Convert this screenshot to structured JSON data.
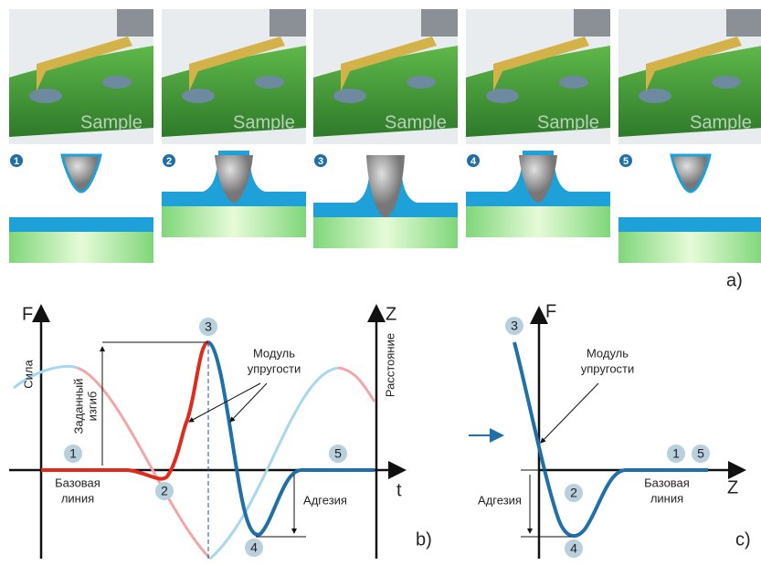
{
  "panel_a": {
    "label": "a)",
    "frames": [
      {
        "step": "1",
        "sample": "Sample"
      },
      {
        "step": "2",
        "sample": "Sample"
      },
      {
        "step": "3",
        "sample": "Sample"
      },
      {
        "step": "4",
        "sample": "Sample"
      },
      {
        "step": "5",
        "sample": "Sample"
      }
    ]
  },
  "panel_b": {
    "label": "b)",
    "f_axis": "F",
    "f_title": "Сила",
    "z_axis": "Z",
    "z_title": "Расстояние",
    "t_axis": "t",
    "setpoint": [
      "Заданный",
      "изгиб"
    ],
    "modulus": [
      "Модуль",
      "упругости"
    ],
    "baseline": [
      "Базовая",
      "линия"
    ],
    "adhesion": "Адгезия",
    "points": [
      "1",
      "2",
      "3",
      "4",
      "5"
    ]
  },
  "panel_c": {
    "label": "c)",
    "f_axis": "F",
    "z_axis": "Z",
    "modulus": [
      "Модуль",
      "упругости"
    ],
    "baseline": [
      "Базовая",
      "линия"
    ],
    "adhesion": "Адгезия",
    "points": [
      "3",
      "2",
      "4",
      "1",
      "5"
    ]
  }
}
